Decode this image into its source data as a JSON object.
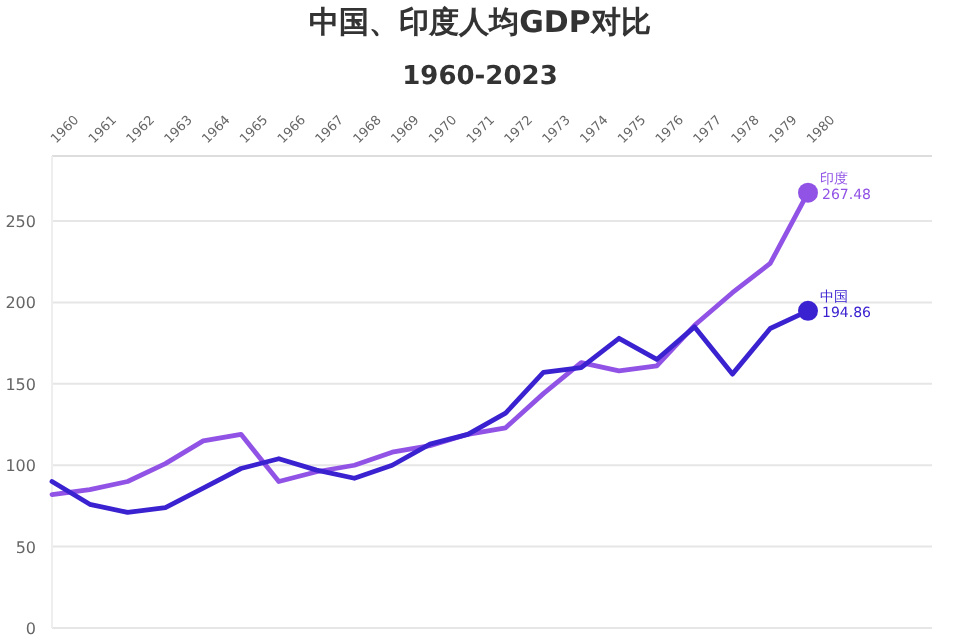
{
  "chart_data": {
    "type": "line",
    "title": "中国、印度人均GDP对比",
    "subtitle": "1960-2023",
    "categories": [
      "1960",
      "1961",
      "1962",
      "1963",
      "1964",
      "1965",
      "1966",
      "1967",
      "1968",
      "1969",
      "1970",
      "1971",
      "1972",
      "1973",
      "1974",
      "1975",
      "1976",
      "1977",
      "1978",
      "1979",
      "1980"
    ],
    "series": [
      {
        "name": "印度",
        "color": "#9153e6",
        "values": [
          82,
          85,
          90,
          101,
          115,
          119,
          90,
          96,
          100,
          108,
          112,
          119,
          123,
          144,
          163,
          158,
          161,
          186,
          206,
          224,
          267.48
        ],
        "value_labels": [
          null,
          null,
          null,
          null,
          null,
          null,
          null,
          null,
          null,
          null,
          null,
          null,
          null,
          null,
          null,
          null,
          null,
          null,
          null,
          null,
          "267.48"
        ]
      },
      {
        "name": "中国",
        "color": "#3a22d0",
        "values": [
          90,
          76,
          71,
          74,
          86,
          98,
          104,
          97,
          92,
          100,
          113,
          119,
          132,
          157,
          160,
          178,
          165,
          185,
          156,
          184,
          194.86
        ],
        "value_labels": [
          null,
          null,
          null,
          null,
          null,
          null,
          null,
          null,
          null,
          null,
          null,
          null,
          null,
          null,
          null,
          null,
          null,
          null,
          null,
          null,
          "194.86"
        ]
      }
    ],
    "ylim": [
      0,
      290
    ],
    "yticks": [
      0,
      50,
      100,
      150,
      200,
      250
    ],
    "grid": "y",
    "line_style": "solid"
  }
}
